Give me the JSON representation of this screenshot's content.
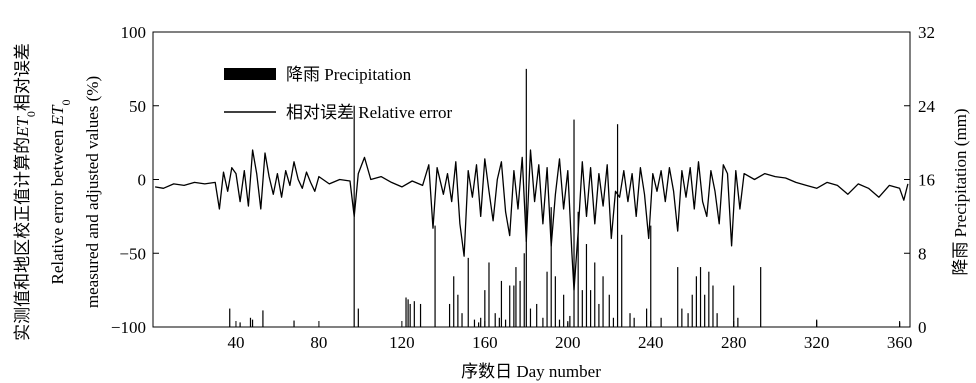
{
  "chart_data": {
    "type": "bar+line",
    "xlabel": "序数日 Day number",
    "ylabel_left_line1": "实测值和地区校正值计算的ET0相对误差",
    "ylabel_left_line2": "Relative error between ET0",
    "ylabel_left_line3": "measured and adjusted values (%)",
    "ylabel_right": "降雨 Precipitation (mm)",
    "xlim": [
      0,
      365
    ],
    "ylim_left": [
      -100,
      100
    ],
    "ylim_right": [
      0,
      32
    ],
    "x_ticks": [
      40,
      80,
      120,
      160,
      200,
      240,
      280,
      320,
      360
    ],
    "y_left_ticks": [
      -100,
      -50,
      0,
      50,
      100
    ],
    "y_left_tick_labels": [
      "−100",
      "−50",
      "0",
      "50",
      "100"
    ],
    "y_right_ticks": [
      0,
      8,
      16,
      24,
      32
    ],
    "legend": {
      "placement": "top-left",
      "precipitation": "降雨 Precipitation",
      "relative_error": "相对误差 Relative error"
    },
    "series": [
      {
        "name": "降雨 Precipitation",
        "type": "bar",
        "axis": "right",
        "x": [
          37,
          42,
          47,
          48,
          53,
          68,
          97,
          99,
          122,
          123,
          124,
          126,
          129,
          136,
          143,
          145,
          147,
          149,
          152,
          155,
          157,
          158,
          160,
          162,
          165,
          167,
          168,
          170,
          172,
          174,
          175,
          177,
          179,
          180,
          182,
          185,
          188,
          190,
          192,
          194,
          196,
          198,
          200,
          201,
          203,
          205,
          207,
          209,
          211,
          213,
          215,
          217,
          220,
          222,
          224,
          226,
          230,
          232,
          238,
          240,
          245,
          253,
          255,
          258,
          260,
          262,
          264,
          266,
          268,
          270,
          272,
          280,
          282,
          293,
          320,
          360
        ],
        "values": [
          2.0,
          0.5,
          1.0,
          0.8,
          1.8,
          0.7,
          24.0,
          2.0,
          3.2,
          3.0,
          2.5,
          2.8,
          2.5,
          11.0,
          2.5,
          5.5,
          3.5,
          1.5,
          7.5,
          0.8,
          0.5,
          1.0,
          4.0,
          7.0,
          1.5,
          1.0,
          5.0,
          0.8,
          4.5,
          4.5,
          6.5,
          5.0,
          8.0,
          28.0,
          2.0,
          2.5,
          1.0,
          6.0,
          13.0,
          5.5,
          0.8,
          3.5,
          0.5,
          1.2,
          22.5,
          12.5,
          4.0,
          9.0,
          4.0,
          7.0,
          2.5,
          5.5,
          3.5,
          1.0,
          22.0,
          10.0,
          1.5,
          1.0,
          2.0,
          11.0,
          1.0,
          6.5,
          2.0,
          1.5,
          3.5,
          5.5,
          6.5,
          3.5,
          6.0,
          4.5,
          1.5,
          4.5,
          1.0,
          6.5,
          0.8,
          0.5
        ]
      },
      {
        "name": "相对误差 Relative error",
        "type": "line",
        "axis": "left",
        "x": [
          1,
          5,
          10,
          15,
          20,
          25,
          30,
          32,
          34,
          36,
          38,
          40,
          42,
          44,
          46,
          48,
          50,
          52,
          54,
          56,
          58,
          60,
          62,
          64,
          66,
          68,
          70,
          72,
          74,
          76,
          78,
          80,
          85,
          90,
          95,
          97,
          99,
          102,
          105,
          110,
          115,
          120,
          125,
          130,
          133,
          135,
          137,
          140,
          142,
          144,
          146,
          148,
          150,
          152,
          154,
          156,
          158,
          160,
          162,
          164,
          166,
          168,
          170,
          172,
          174,
          176,
          178,
          180,
          182,
          184,
          186,
          188,
          190,
          192,
          194,
          196,
          198,
          200,
          202,
          203,
          205,
          207,
          209,
          211,
          213,
          215,
          217,
          219,
          221,
          223,
          225,
          227,
          229,
          231,
          233,
          235,
          237,
          239,
          241,
          243,
          245,
          247,
          249,
          251,
          253,
          255,
          257,
          259,
          261,
          263,
          265,
          267,
          269,
          271,
          273,
          275,
          277,
          279,
          281,
          283,
          285,
          290,
          295,
          300,
          305,
          310,
          315,
          320,
          325,
          330,
          335,
          340,
          345,
          350,
          355,
          360,
          362,
          364
        ],
        "values": [
          -5,
          -6,
          -3,
          -4,
          -2,
          -3,
          -2,
          -20,
          5,
          -8,
          8,
          4,
          -15,
          6,
          -18,
          20,
          4,
          -20,
          18,
          2,
          -10,
          4,
          -12,
          6,
          -4,
          12,
          0,
          -6,
          5,
          -2,
          -8,
          2,
          -3,
          0,
          -1,
          -25,
          4,
          15,
          0,
          2,
          -2,
          -5,
          -1,
          -4,
          10,
          -33,
          8,
          -10,
          4,
          -15,
          12,
          -30,
          -52,
          6,
          -12,
          10,
          -25,
          14,
          -8,
          -28,
          0,
          12,
          -22,
          -38,
          6,
          -20,
          15,
          -42,
          20,
          -15,
          10,
          -30,
          8,
          -45,
          -10,
          14,
          -20,
          6,
          -50,
          -75,
          -35,
          12,
          -25,
          8,
          -30,
          4,
          -18,
          10,
          -40,
          -8,
          -12,
          6,
          -15,
          4,
          -25,
          8,
          -10,
          -40,
          4,
          -8,
          6,
          -15,
          8,
          -8,
          -35,
          6,
          -12,
          8,
          -20,
          12,
          -15,
          -25,
          6,
          -8,
          -30,
          10,
          4,
          -45,
          6,
          -20,
          4,
          0,
          4,
          2,
          1,
          -2,
          -4,
          -6,
          -2,
          -4,
          -10,
          -3,
          -6,
          -12,
          -4,
          -6,
          -14,
          -3
        ]
      }
    ]
  }
}
